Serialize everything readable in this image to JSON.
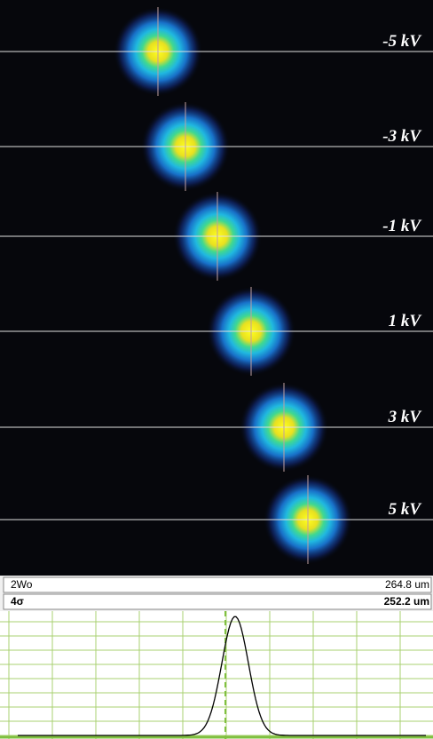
{
  "spots": [
    {
      "label": "-5 kV"
    },
    {
      "label": "-3 kV"
    },
    {
      "label": "-1 kV"
    },
    {
      "label": "1 kV"
    },
    {
      "label": "3 kV"
    },
    {
      "label": "5 kV"
    }
  ],
  "measurements": [
    {
      "name": "2Wo",
      "value": "264.8 um"
    },
    {
      "name": "4σ",
      "value": "252.2 um"
    }
  ]
}
